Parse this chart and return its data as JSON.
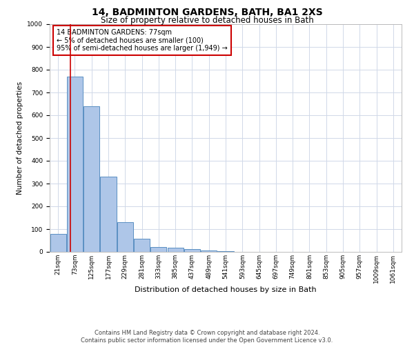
{
  "title": "14, BADMINTON GARDENS, BATH, BA1 2XS",
  "subtitle": "Size of property relative to detached houses in Bath",
  "xlabel": "Distribution of detached houses by size in Bath",
  "ylabel": "Number of detached properties",
  "bar_labels": [
    "21sqm",
    "73sqm",
    "125sqm",
    "177sqm",
    "229sqm",
    "281sqm",
    "333sqm",
    "385sqm",
    "437sqm",
    "489sqm",
    "541sqm",
    "593sqm",
    "645sqm",
    "697sqm",
    "749sqm",
    "801sqm",
    "853sqm",
    "905sqm",
    "957sqm",
    "1009sqm",
    "1061sqm"
  ],
  "bar_heights": [
    80,
    770,
    640,
    330,
    130,
    57,
    22,
    18,
    12,
    7,
    2,
    0,
    0,
    0,
    0,
    0,
    0,
    0,
    0,
    0,
    0
  ],
  "bar_color": "#aec6e8",
  "bar_edgecolor": "#5a8fc2",
  "vline_x": 0.75,
  "vline_color": "#cc0000",
  "annotation_title": "14 BADMINTON GARDENS: 77sqm",
  "annotation_line1": "← 5% of detached houses are smaller (100)",
  "annotation_line2": "95% of semi-detached houses are larger (1,949) →",
  "annotation_box_color": "#ffffff",
  "annotation_box_edgecolor": "#cc0000",
  "footer1": "Contains HM Land Registry data © Crown copyright and database right 2024.",
  "footer2": "Contains public sector information licensed under the Open Government Licence v3.0.",
  "ylim": [
    0,
    1000
  ],
  "background_color": "#ffffff",
  "grid_color": "#d0d8e8",
  "title_fontsize": 10,
  "subtitle_fontsize": 8.5,
  "xlabel_fontsize": 8,
  "ylabel_fontsize": 7.5,
  "tick_fontsize": 6.5,
  "annotation_fontsize": 7,
  "footer_fontsize": 6
}
